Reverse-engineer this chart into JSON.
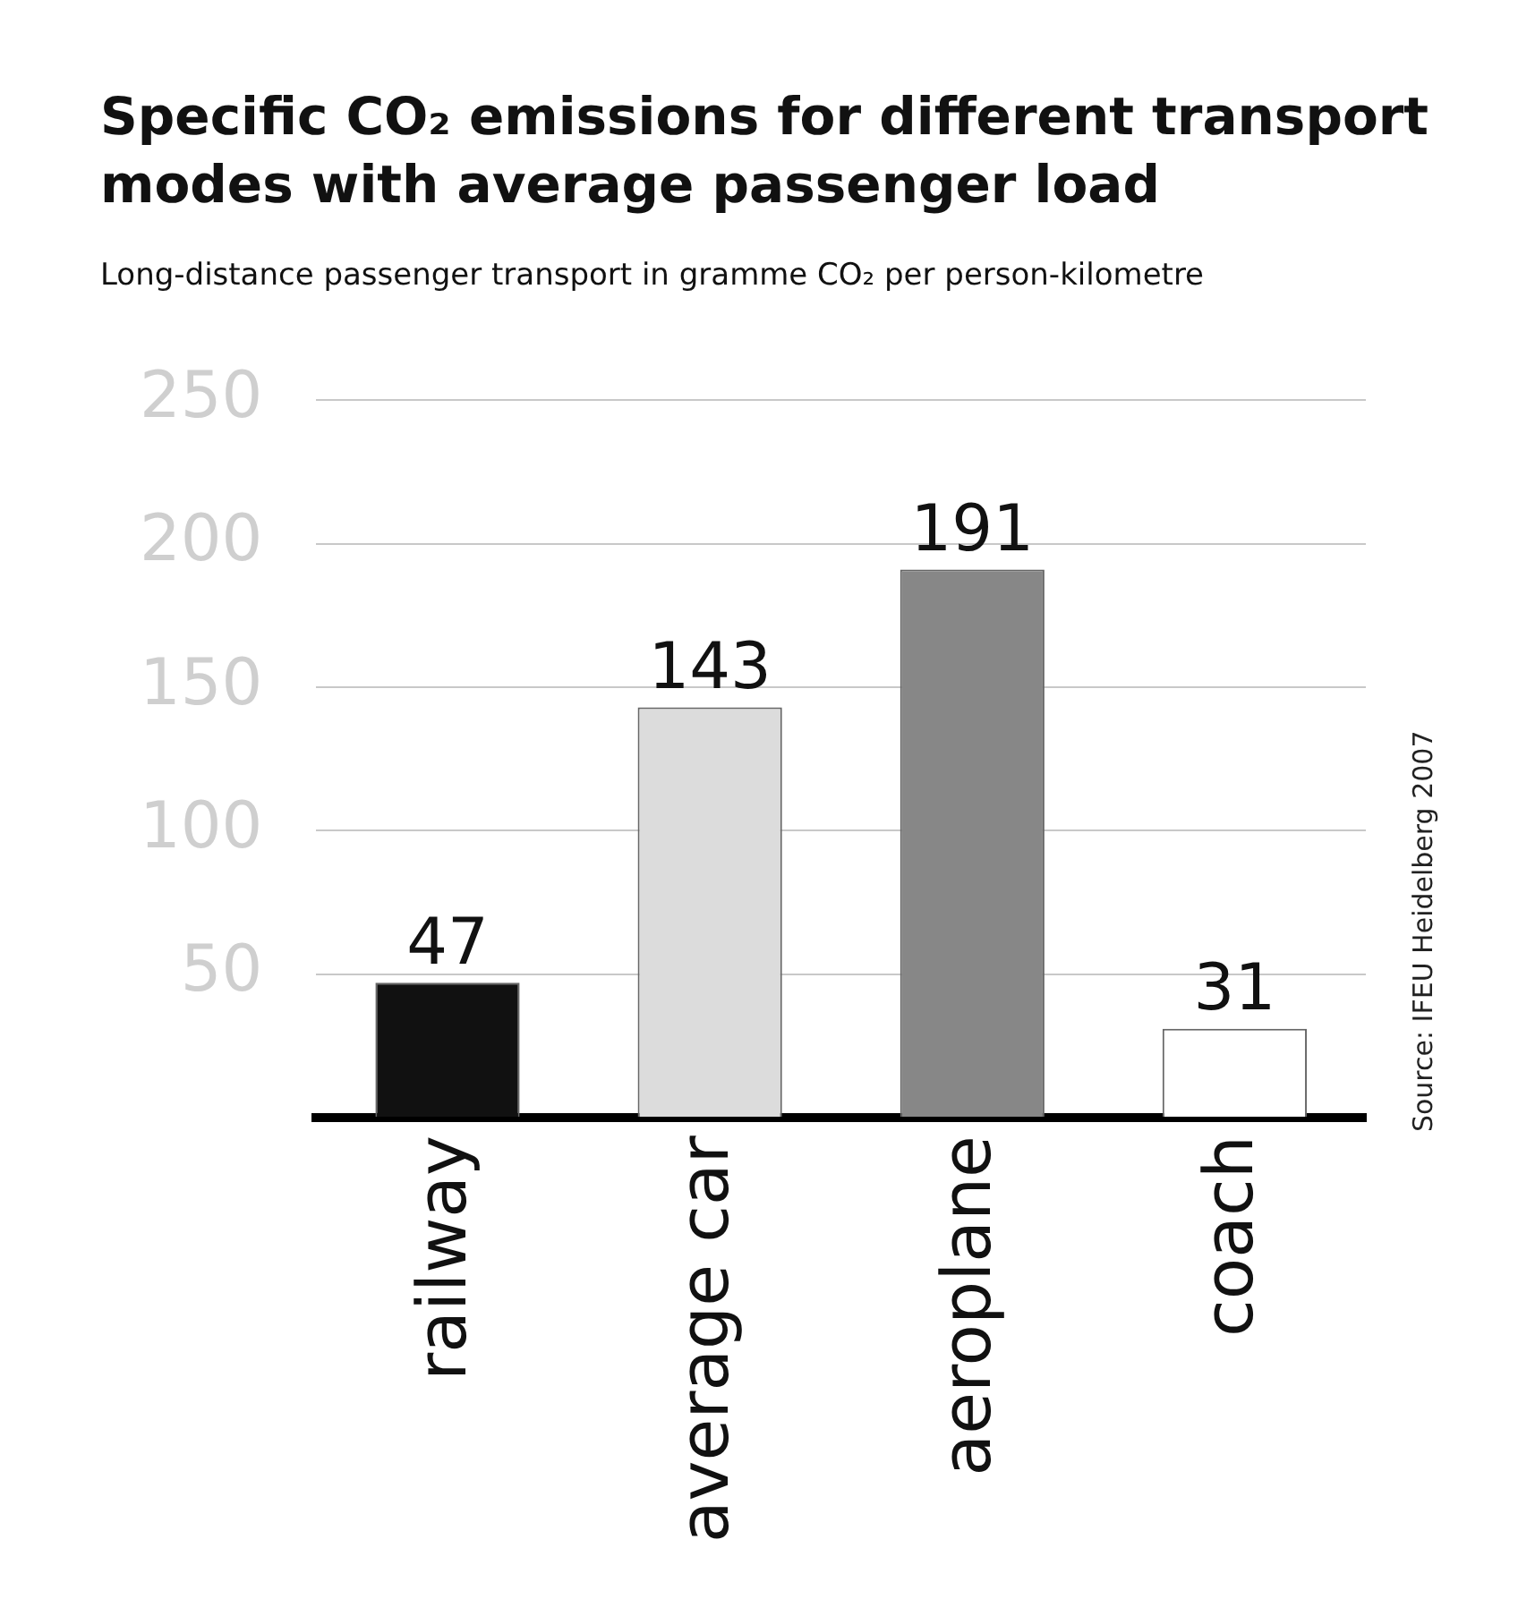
{
  "chart_data": {
    "type": "bar",
    "title": "Specific CO₂ emissions for different transport modes with average passenger load",
    "subtitle": "Long-distance passenger transport in gramme CO₂ per person-kilometre",
    "categories": [
      "railway",
      "average car",
      "aeroplane",
      "coach"
    ],
    "values": [
      47,
      143,
      191,
      31
    ],
    "colors": [
      "#111111",
      "#dcdcdc",
      "#878787",
      "#ffffff"
    ],
    "ylim": [
      0,
      250
    ],
    "yticks": [
      {
        "value": 0,
        "label": null
      },
      50,
      100,
      150,
      200,
      250
    ],
    "grid": "y",
    "data_labels": true,
    "legend": false,
    "annotations": [
      "Source: IFEU Heidelberg 2007"
    ]
  }
}
